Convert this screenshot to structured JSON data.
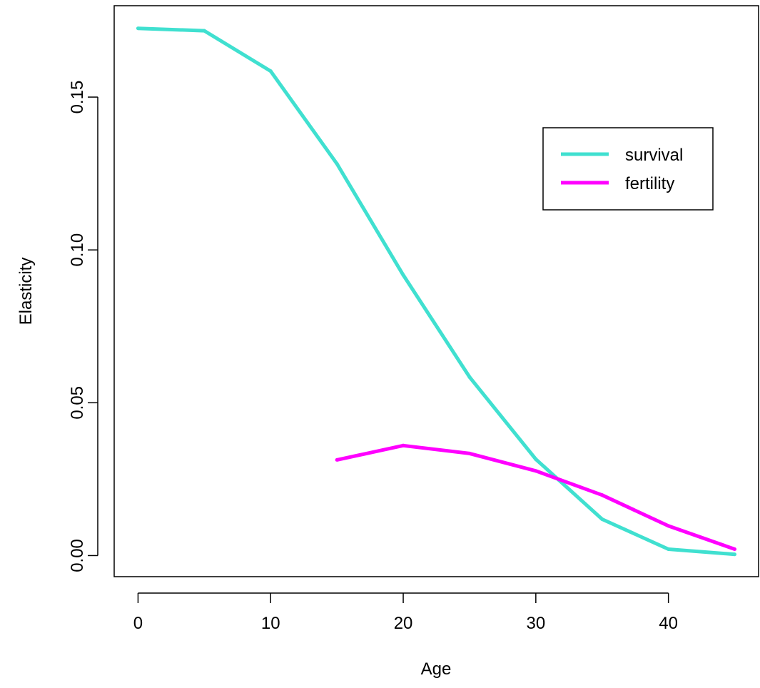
{
  "chart_data": {
    "type": "line",
    "xlabel": "Age",
    "ylabel": "Elasticity",
    "xlim": [
      -1.8,
      46.8
    ],
    "ylim": [
      -0.0069,
      0.1799
    ],
    "x_ticks": [
      0,
      10,
      20,
      30,
      40
    ],
    "x_tick_labels": [
      "0",
      "10",
      "20",
      "30",
      "40"
    ],
    "y_ticks": [
      0.0,
      0.05,
      0.1,
      0.15
    ],
    "y_tick_labels": [
      "0.00",
      "0.05",
      "0.10",
      "0.15"
    ],
    "grid": false,
    "legend_position": "top-right",
    "series": [
      {
        "name": "survival",
        "color": "#40E0D0",
        "x": [
          0,
          5,
          10,
          15,
          20,
          25,
          30,
          35,
          40,
          45
        ],
        "y": [
          0.1725,
          0.1717,
          0.1585,
          0.1282,
          0.0918,
          0.0584,
          0.0315,
          0.0119,
          0.0021,
          0.0004
        ]
      },
      {
        "name": "fertility",
        "color": "#FF00FF",
        "x": [
          15,
          20,
          25,
          30,
          35,
          40,
          45
        ],
        "y": [
          0.0313,
          0.036,
          0.0334,
          0.0277,
          0.0198,
          0.0097,
          0.0021
        ]
      }
    ]
  }
}
